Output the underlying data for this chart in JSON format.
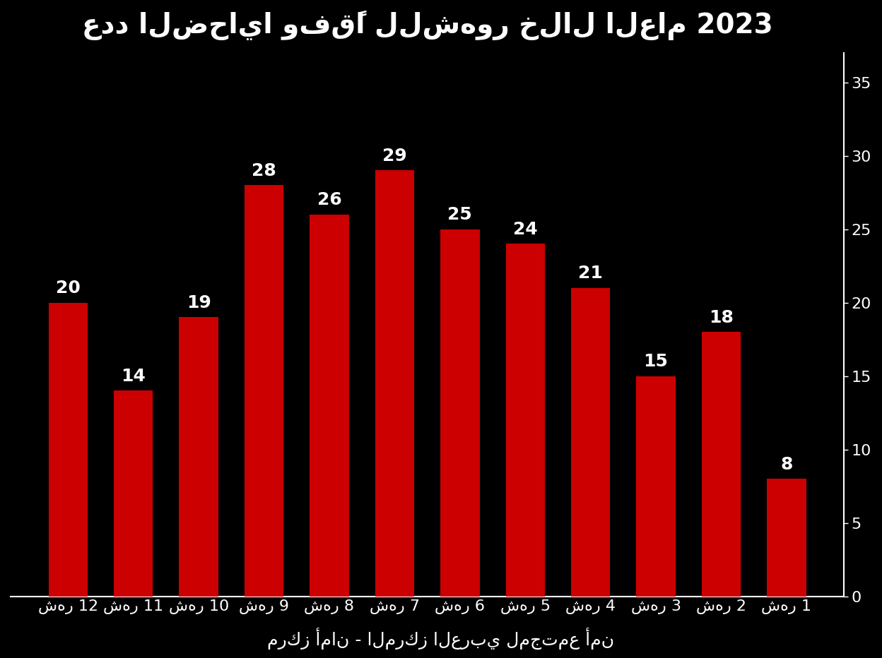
{
  "title": "عدد الضحايا وفقًا للشهور خلال العام 2023",
  "footer": "مركز أمان - المركز العربي لمجتمع أمن",
  "categories": [
    "شهر 12",
    "شهر 11",
    "شهر 10",
    "شهر 9",
    "شهر 8",
    "شهر 7",
    "شهر 6",
    "شهر 5",
    "شهر 4",
    "شهر 3",
    "شهر 2",
    "شهر 1"
  ],
  "values": [
    20,
    14,
    19,
    28,
    26,
    29,
    25,
    24,
    21,
    15,
    18,
    8
  ],
  "bar_color": "#CC0000",
  "background_color": "#000000",
  "text_color": "#FFFFFF",
  "ylim": [
    0,
    37
  ],
  "yticks": [
    0,
    5,
    10,
    15,
    20,
    25,
    30,
    35
  ],
  "title_fontsize": 28,
  "label_fontsize": 18,
  "tick_fontsize": 16,
  "footer_fontsize": 18
}
